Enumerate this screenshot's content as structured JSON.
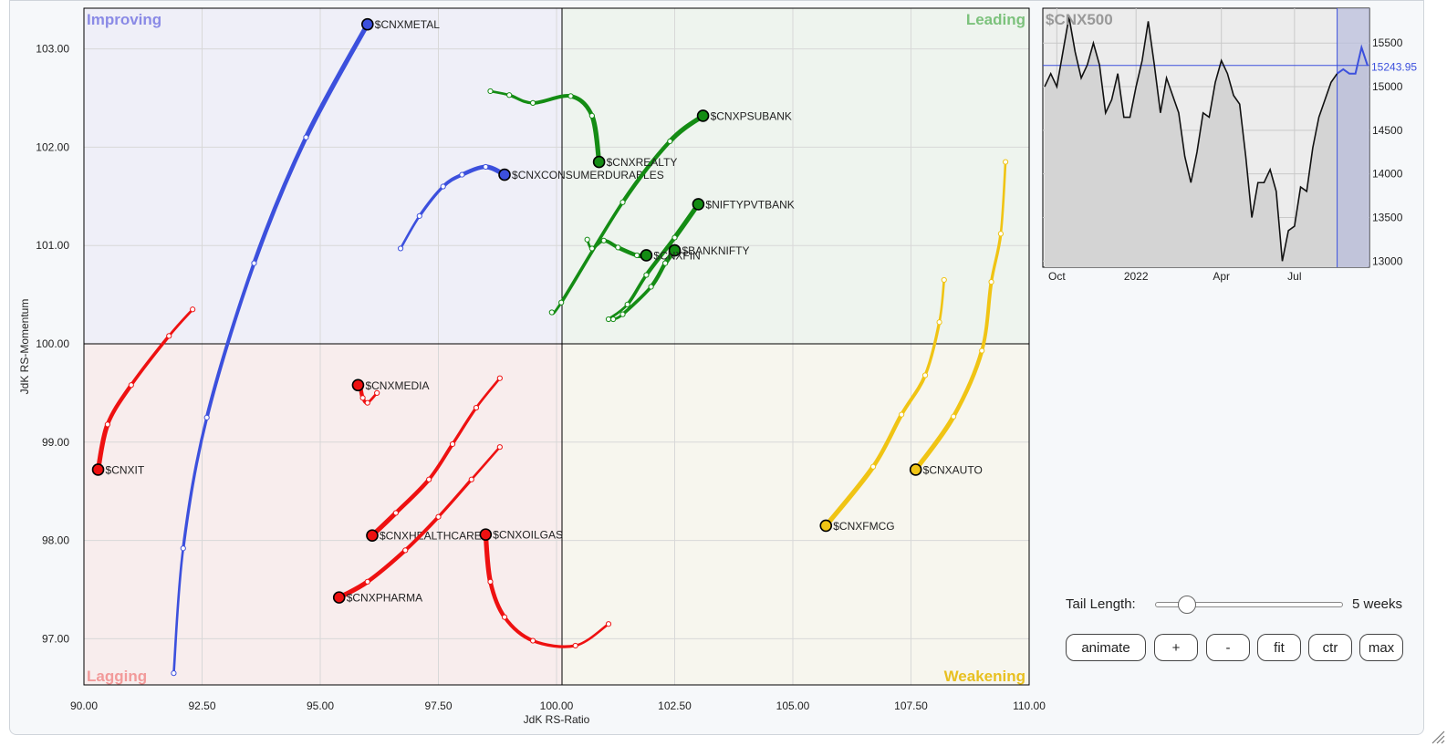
{
  "chart_data": [
    {
      "type": "scatter",
      "subtype": "relative-rotation-graph",
      "xlabel": "JdK RS-Ratio",
      "ylabel": "JdK RS-Momentum",
      "xlim": [
        90,
        110
      ],
      "ylim": [
        96.5,
        103.4
      ],
      "center": [
        100,
        100
      ],
      "x_ticks": [
        "90.00",
        "92.50",
        "95.00",
        "97.50",
        "100.00",
        "102.50",
        "105.00",
        "107.50",
        "110.00"
      ],
      "y_ticks": [
        "97.00",
        "98.00",
        "99.00",
        "100.00",
        "101.00",
        "102.00",
        "103.00"
      ],
      "grid": true,
      "quadrants": [
        {
          "name": "Improving",
          "color": "#8a8ae6",
          "position": "top-left"
        },
        {
          "name": "Leading",
          "color": "#7cc27c",
          "position": "top-right"
        },
        {
          "name": "Lagging",
          "color": "#f29a9a",
          "position": "bottom-left"
        },
        {
          "name": "Weakening",
          "color": "#e8c021",
          "position": "bottom-right"
        }
      ],
      "series": [
        {
          "name": "$CNXMETAL",
          "color": "#3c50dd",
          "labelSide": "right",
          "tail": [
            [
              91.9,
              96.65
            ],
            [
              92.1,
              97.92
            ],
            [
              92.6,
              99.25
            ],
            [
              93.6,
              100.82
            ],
            [
              94.7,
              102.1
            ],
            [
              96.0,
              103.25
            ]
          ]
        },
        {
          "name": "$CNXCONSUMERDURABLES",
          "color": "#3c50dd",
          "labelSide": "right",
          "tail": [
            [
              96.7,
              100.97
            ],
            [
              97.1,
              101.3
            ],
            [
              97.6,
              101.6
            ],
            [
              98.0,
              101.72
            ],
            [
              98.5,
              101.8
            ],
            [
              98.9,
              101.72
            ]
          ]
        },
        {
          "name": "$CNXPSUBANK",
          "color": "#148c14",
          "labelSide": "right",
          "tail": [
            [
              99.9,
              100.32
            ],
            [
              100.1,
              100.42
            ],
            [
              101.4,
              101.44
            ],
            [
              102.4,
              102.06
            ],
            [
              103.1,
              102.32
            ]
          ]
        },
        {
          "name": "$CNXREALTY",
          "color": "#148c14",
          "labelSide": "right",
          "tail": [
            [
              98.6,
              102.57
            ],
            [
              99.0,
              102.53
            ],
            [
              99.5,
              102.45
            ],
            [
              100.3,
              102.52
            ],
            [
              100.75,
              102.32
            ],
            [
              100.9,
              101.85
            ]
          ]
        },
        {
          "name": "$NIFTYPVTBANK",
          "color": "#148c14",
          "labelSide": "right",
          "tail": [
            [
              101.1,
              100.25
            ],
            [
              101.5,
              100.4
            ],
            [
              101.9,
              100.7
            ],
            [
              102.5,
              101.08
            ],
            [
              103.0,
              101.42
            ]
          ]
        },
        {
          "name": "$BANKNIFTY",
          "color": "#148c14",
          "labelSide": "right",
          "tail": [
            [
              101.2,
              100.25
            ],
            [
              101.4,
              100.3
            ],
            [
              102.0,
              100.58
            ],
            [
              102.3,
              100.82
            ],
            [
              102.5,
              100.95
            ]
          ]
        },
        {
          "name": "$CNXFIN",
          "color": "#148c14",
          "labelSide": "right",
          "tail": [
            [
              100.65,
              101.06
            ],
            [
              100.75,
              100.97
            ],
            [
              101.0,
              101.05
            ],
            [
              101.3,
              100.98
            ],
            [
              101.7,
              100.9
            ],
            [
              101.9,
              100.9
            ]
          ]
        },
        {
          "name": "$CNXIT",
          "color": "#ee1111",
          "labelSide": "right",
          "tail": [
            [
              92.3,
              100.35
            ],
            [
              91.8,
              100.08
            ],
            [
              91.0,
              99.58
            ],
            [
              90.5,
              99.18
            ],
            [
              90.3,
              98.72
            ]
          ]
        },
        {
          "name": "$CNXMEDIA",
          "color": "#ee1111",
          "labelSide": "right",
          "tail": [
            [
              96.2,
              99.5
            ],
            [
              96.0,
              99.4
            ],
            [
              95.9,
              99.45
            ],
            [
              95.85,
              99.55
            ],
            [
              95.8,
              99.58
            ]
          ]
        },
        {
          "name": "$CNXHEALTHCARE",
          "color": "#ee1111",
          "labelSide": "right",
          "tail": [
            [
              98.8,
              99.65
            ],
            [
              98.3,
              99.35
            ],
            [
              97.8,
              98.98
            ],
            [
              97.3,
              98.62
            ],
            [
              96.6,
              98.28
            ],
            [
              96.1,
              98.05
            ]
          ]
        },
        {
          "name": "$CNXPHARMA",
          "color": "#ee1111",
          "labelSide": "right",
          "tail": [
            [
              98.8,
              98.95
            ],
            [
              98.2,
              98.62
            ],
            [
              97.5,
              98.24
            ],
            [
              96.8,
              97.9
            ],
            [
              96.0,
              97.58
            ],
            [
              95.4,
              97.42
            ]
          ]
        },
        {
          "name": "$CNXOILGAS",
          "color": "#ee1111",
          "labelSide": "right",
          "tail": [
            [
              101.1,
              97.15
            ],
            [
              100.4,
              96.93
            ],
            [
              99.5,
              96.98
            ],
            [
              98.9,
              97.22
            ],
            [
              98.6,
              97.58
            ],
            [
              98.5,
              98.06
            ]
          ]
        },
        {
          "name": "$CNXFMCG",
          "color": "#f0c414",
          "labelSide": "right",
          "tail": [
            [
              108.2,
              100.65
            ],
            [
              108.1,
              100.22
            ],
            [
              107.8,
              99.68
            ],
            [
              107.3,
              99.28
            ],
            [
              106.7,
              98.75
            ],
            [
              105.7,
              98.15
            ]
          ]
        },
        {
          "name": "$CNXAUTO",
          "color": "#f0c414",
          "labelSide": "right",
          "tail": [
            [
              109.5,
              101.85
            ],
            [
              109.4,
              101.12
            ],
            [
              109.2,
              100.63
            ],
            [
              109.0,
              99.93
            ],
            [
              108.4,
              99.26
            ],
            [
              107.6,
              98.72
            ]
          ]
        }
      ]
    },
    {
      "type": "line",
      "title": "$CNX500",
      "x_ticks": [
        "Oct",
        "2022",
        "Apr",
        "Jul"
      ],
      "y_ticks": [
        "13000",
        "13500",
        "14000",
        "14500",
        "15000",
        "15500"
      ],
      "ylim": [
        12930,
        15900
      ],
      "current_value": "15243.95",
      "grid": true,
      "values": [
        15000,
        15150,
        15000,
        15400,
        15800,
        15400,
        15100,
        15250,
        15500,
        15250,
        14700,
        14850,
        15150,
        14650,
        14650,
        15000,
        15300,
        15750,
        15250,
        14700,
        15100,
        14900,
        14700,
        14200,
        13900,
        14250,
        14700,
        14650,
        15050,
        15300,
        15150,
        14900,
        14800,
        14200,
        13500,
        13900,
        13900,
        14050,
        13800,
        13000,
        13350,
        13400,
        13850,
        13800,
        14300,
        14650,
        14850,
        15050,
        15150,
        15200,
        15150,
        15150,
        15450,
        15240
      ],
      "highlight_from_index": 48
    }
  ],
  "controls": {
    "tail_label": "Tail Length:",
    "tail_value": "5 weeks",
    "tail_fraction": 0.13,
    "buttons": [
      {
        "label": "animate"
      },
      {
        "label": "+"
      },
      {
        "label": "-"
      },
      {
        "label": "fit"
      },
      {
        "label": "ctr"
      },
      {
        "label": "max"
      }
    ]
  }
}
